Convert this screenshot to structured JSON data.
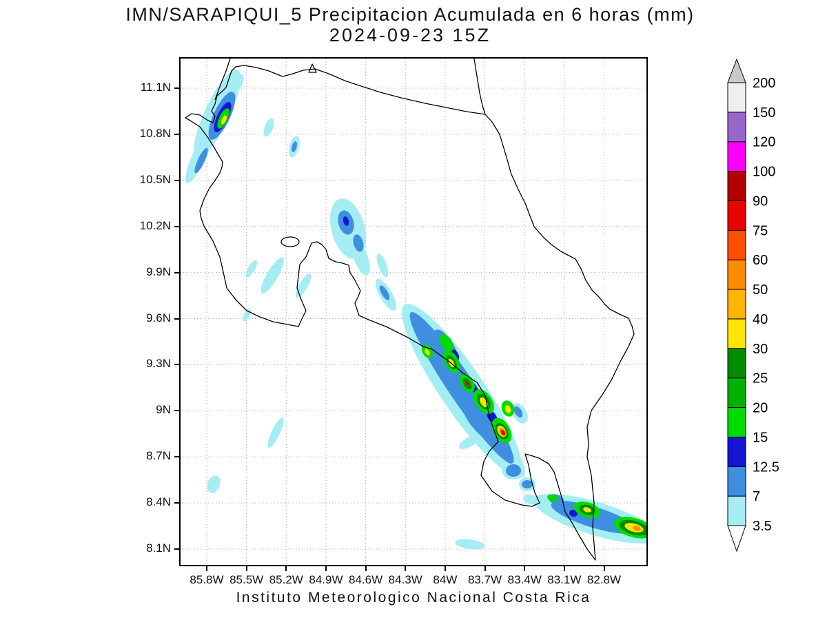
{
  "title": {
    "line1": "IMN/SARAPIQUI_5 Precipitacion Acumulada en 6 horas (mm)",
    "line2": "2024-09-23 15Z"
  },
  "footer": "Instituto Meteorologico Nacional Costa Rica",
  "map": {
    "region": "Costa Rica",
    "lat_ticks": [
      "11.1N",
      "10.8N",
      "10.5N",
      "10.2N",
      "9.9N",
      "9.6N",
      "9.3N",
      "9N",
      "8.7N",
      "8.4N",
      "8.1N"
    ],
    "lon_ticks": [
      "85.8W",
      "85.5W",
      "85.2W",
      "84.9W",
      "84.6W",
      "84.3W",
      "84W",
      "83.7W",
      "83.4W",
      "83.1W",
      "82.8W"
    ]
  },
  "colorbar": {
    "labels_bottom_to_top": [
      "3.5",
      "7",
      "12.5",
      "15",
      "20",
      "25",
      "30",
      "40",
      "50",
      "60",
      "75",
      "90",
      "100",
      "120",
      "150",
      "200"
    ],
    "segment_colors_bottom_to_top": [
      "#A4EDF3",
      "#3E8FE0",
      "#1414D2",
      "#00DC00",
      "#00B000",
      "#008C00",
      "#FFE400",
      "#FFB400",
      "#FF8C00",
      "#FF4E00",
      "#ED0000",
      "#B40000",
      "#FF00FF",
      "#9966CC",
      "#EFEFEF"
    ],
    "under_color": "#FFFFFF",
    "over_color": "#C8C8C8",
    "units": "mm"
  },
  "palette": {
    "cyan": "#A4EDF3",
    "blue": "#3E8FE0",
    "dark_blue": "#1414D2",
    "green": "#00DC00",
    "dark_green": "#008C00",
    "yellow": "#FFE400",
    "orange": "#FF9000",
    "red": "#ED0000"
  }
}
